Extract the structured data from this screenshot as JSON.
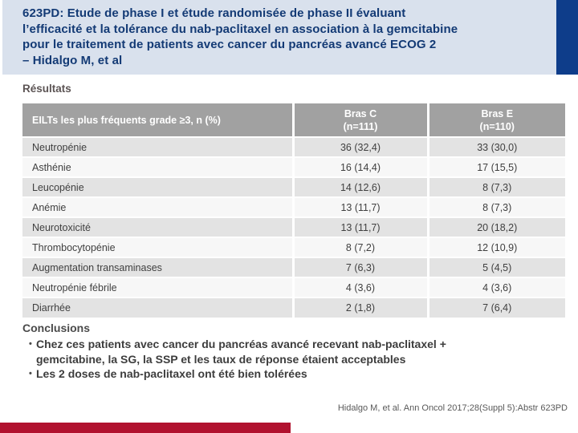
{
  "slide": {
    "title": "623PD: Etude de phase I et étude randomisée de phase II évaluant\nl’efficacité et la tolérance du nab-paclitaxel en association à la gemcitabine\npour le traitement de patients avec cancer du pancréas avancé ECOG 2\n– Hidalgo M, et al",
    "results_heading": "Résultats"
  },
  "table": {
    "header": {
      "label_column": "EILTs les plus fréquents grade ≥3, n (%)",
      "bras_c": "Bras C\n(n=111)",
      "bras_e": "Bras E\n(n=110)"
    },
    "rows": [
      {
        "label": "Neutropénie",
        "bras_c": "36 (32,4)",
        "bras_e": "33 (30,0)"
      },
      {
        "label": "Asthénie",
        "bras_c": "16 (14,4)",
        "bras_e": "17 (15,5)"
      },
      {
        "label": "Leucopénie",
        "bras_c": "14 (12,6)",
        "bras_e": "8 (7,3)"
      },
      {
        "label": "Anémie",
        "bras_c": "13 (11,7)",
        "bras_e": "8 (7,3)"
      },
      {
        "label": "Neurotoxicité",
        "bras_c": "13 (11,7)",
        "bras_e": "20 (18,2)"
      },
      {
        "label": "Thrombocytopénie",
        "bras_c": "8 (7,2)",
        "bras_e": "12 (10,9)"
      },
      {
        "label": "Augmentation transaminases",
        "bras_c": "7 (6,3)",
        "bras_e": "5 (4,5)"
      },
      {
        "label": "Neutropénie fébrile",
        "bras_c": "4 (3,6)",
        "bras_e": "4 (3,6)"
      },
      {
        "label": "Diarrhée",
        "bras_c": "2 (1,8)",
        "bras_e": "7 (6,4)"
      }
    ]
  },
  "conclusions": {
    "heading": "Conclusions",
    "bullets": [
      "Chez ces patients avec cancer du pancréas avancé recevant nab-paclitaxel + gemcitabine, la SG, la SSP et les taux de réponse étaient acceptables",
      "Les 2 doses de nab-paclitaxel ont été bien tolérées"
    ]
  },
  "footer": {
    "citation": "Hidalgo M, et al. Ann Oncol 2017;28(Suppl 5):Abstr 623PD"
  },
  "colors": {
    "header_background": "#d9e1ed",
    "header_text": "#133a75",
    "accent_bar_blue": "#0e3d8a",
    "accent_bar_red": "#b1122f",
    "table_header_background": "#a1a1a1",
    "table_row_dark": "#e3e3e3",
    "table_row_light": "#f7f7f7"
  }
}
